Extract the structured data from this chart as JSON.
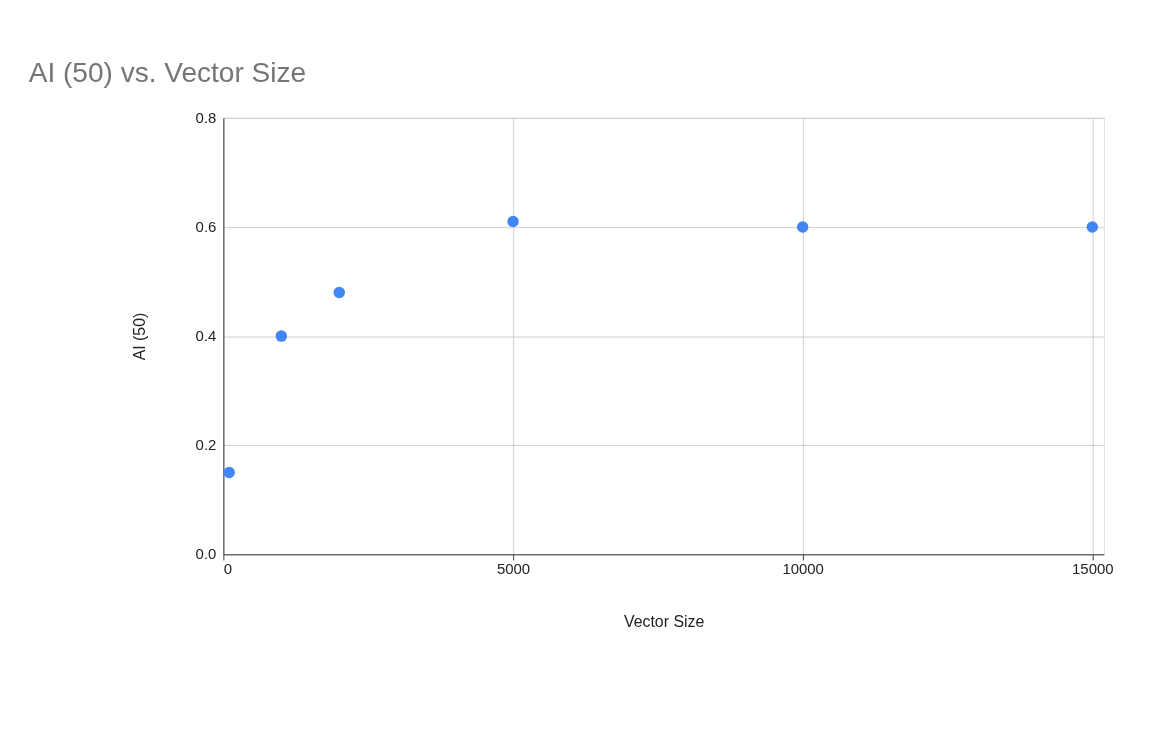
{
  "chart_data": {
    "type": "scatter",
    "title": "AI (50) vs. Vector Size",
    "xlabel": "Vector Size",
    "ylabel": "AI (50)",
    "x": [
      100,
      1000,
      2000,
      5000,
      10000,
      15000
    ],
    "series": [
      {
        "color": "#4285f4",
        "values": [
          0.15,
          0.4,
          0.48,
          0.61,
          0.6,
          0.6
        ]
      }
    ],
    "xlim": [
      0,
      15200
    ],
    "xticks": [
      0,
      5000,
      10000,
      15000
    ],
    "ylim": [
      0,
      0.8
    ],
    "yticks": [
      {
        "value": 0,
        "label": "0.0"
      },
      0.2,
      0.4,
      0.6,
      0.8
    ],
    "grid": true,
    "marker": "circle",
    "legend": false
  }
}
